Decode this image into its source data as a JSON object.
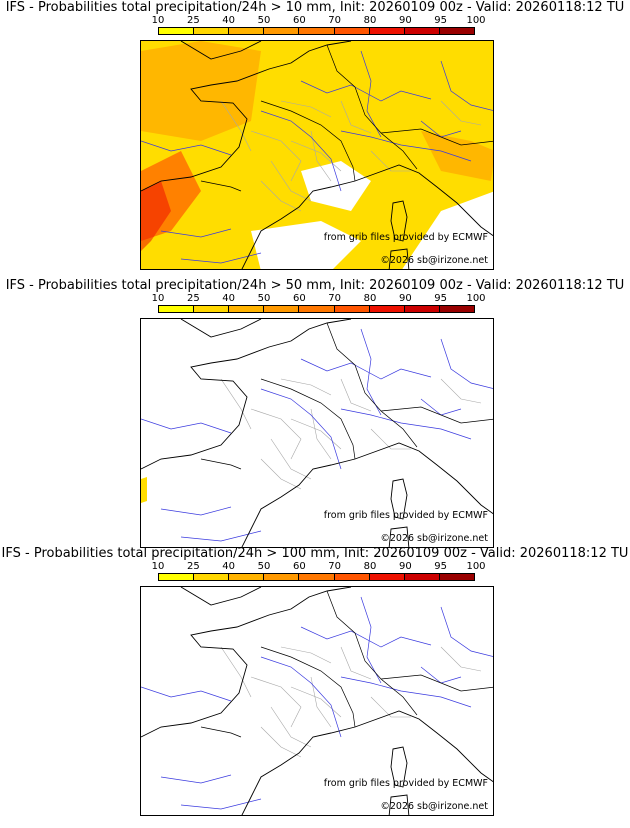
{
  "scale": {
    "labels": [
      "10",
      "25",
      "40",
      "50",
      "60",
      "70",
      "80",
      "90",
      "95",
      "100"
    ],
    "colors": [
      "#ffff00",
      "#ffd700",
      "#ffb300",
      "#ff9900",
      "#ff7700",
      "#ff5500",
      "#ee1100",
      "#cc0000",
      "#990000",
      "#660000"
    ]
  },
  "panels": [
    {
      "title": "IFS - Probabilities total precipitation/24h > 10 mm, Init: 20260109 00z - Valid: 20260118:12 TU",
      "source_credit": "from grib files provided by ECMWF",
      "copyright": "©2026 sb@irizone.net",
      "coverage": "extensive"
    },
    {
      "title": "IFS - Probabilities total precipitation/24h > 50 mm, Init: 20260109 00z - Valid: 20260118:12 TU",
      "source_credit": "from grib files provided by ECMWF",
      "copyright": "©2026 sb@irizone.net",
      "coverage": "minimal"
    },
    {
      "title": "IFS - Probabilities total precipitation/24h > 100 mm, Init: 20260109 00z - Valid: 20260118:12 TU",
      "source_credit": "from grib files provided by ECMWF",
      "copyright": "©2026 sb@irizone.net",
      "coverage": "none"
    }
  ]
}
